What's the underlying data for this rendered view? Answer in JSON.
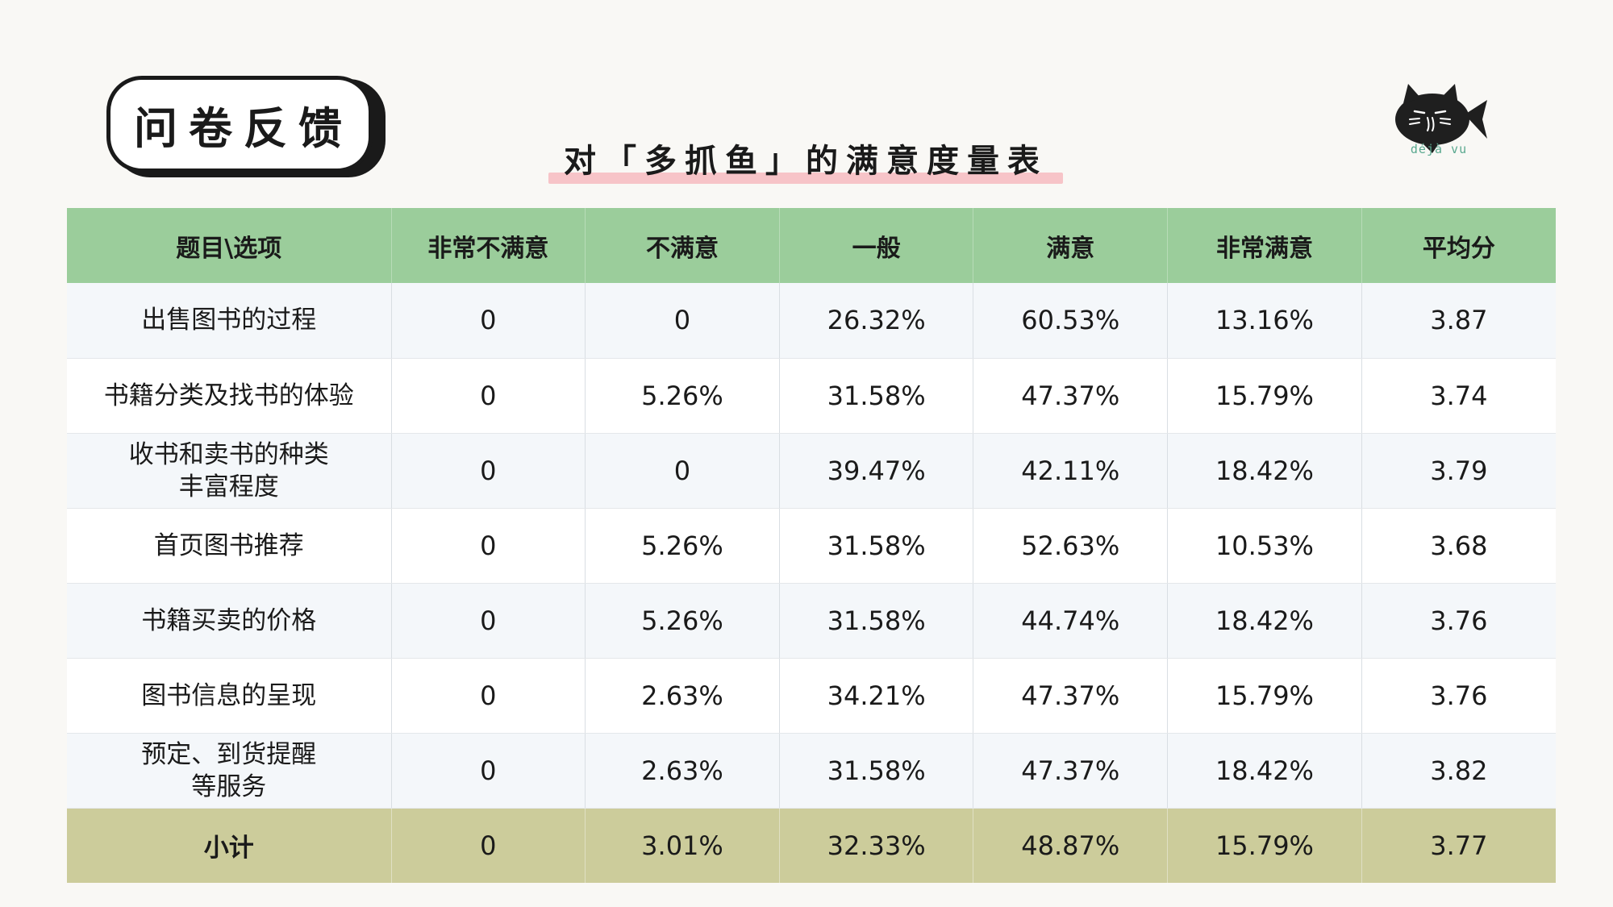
{
  "title": "问卷反馈",
  "subtitle": "对「多抓鱼」的满意度量表",
  "logo": {
    "icon": "cat-fish-icon",
    "caption": "déjà vu"
  },
  "colors": {
    "header_bg": "#9bcd9b",
    "footer_bg": "#cccc9b",
    "highlight": "#f7c4c8",
    "row_alt": "#f4f7fa"
  },
  "table": {
    "headers": [
      "题目\\选项",
      "非常不满意",
      "不满意",
      "一般",
      "满意",
      "非常满意",
      "平均分"
    ],
    "rows": [
      {
        "label": [
          "出售图书的过程"
        ],
        "values": [
          "0",
          "0",
          "26.32%",
          "60.53%",
          "13.16%",
          "3.87"
        ]
      },
      {
        "label": [
          "书籍分类及找书的体验"
        ],
        "values": [
          "0",
          "5.26%",
          "31.58%",
          "47.37%",
          "15.79%",
          "3.74"
        ]
      },
      {
        "label": [
          "收书和卖书的种类",
          "丰富程度"
        ],
        "values": [
          "0",
          "0",
          "39.47%",
          "42.11%",
          "18.42%",
          "3.79"
        ]
      },
      {
        "label": [
          "首页图书推荐"
        ],
        "values": [
          "0",
          "5.26%",
          "31.58%",
          "52.63%",
          "10.53%",
          "3.68"
        ]
      },
      {
        "label": [
          "书籍买卖的价格"
        ],
        "values": [
          "0",
          "5.26%",
          "31.58%",
          "44.74%",
          "18.42%",
          "3.76"
        ]
      },
      {
        "label": [
          "图书信息的呈现"
        ],
        "values": [
          "0",
          "2.63%",
          "34.21%",
          "47.37%",
          "15.79%",
          "3.76"
        ]
      },
      {
        "label": [
          "预定、到货提醒",
          "等服务"
        ],
        "values": [
          "0",
          "2.63%",
          "31.58%",
          "47.37%",
          "18.42%",
          "3.82"
        ]
      }
    ],
    "total": {
      "label": "小计",
      "values": [
        "0",
        "3.01%",
        "32.33%",
        "48.87%",
        "15.79%",
        "3.77"
      ]
    }
  }
}
